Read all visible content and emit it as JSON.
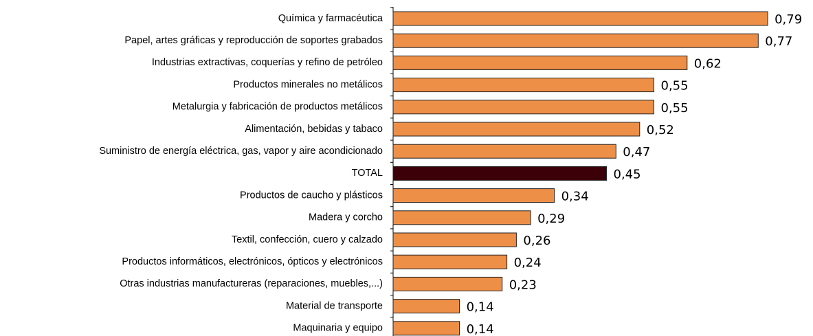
{
  "chart_data": {
    "type": "bar",
    "orientation": "horizontal",
    "categories": [
      "Química y farmacéutica",
      "Papel, artes gráficas y reproducción de soportes grabados",
      "Industrias extractivas, coquerías y refino de petróleo",
      "Productos minerales no metálicos",
      "Metalurgia y fabricación de productos metálicos",
      "Alimentación, bebidas y tabaco",
      "Suministro de energía eléctrica, gas, vapor y aire acondicionado",
      "TOTAL",
      "Productos de caucho y plásticos",
      "Madera y corcho",
      "Textil, confección, cuero y calzado",
      "Productos informáticos, electrónicos, ópticos y electrónicos",
      "Otras industrias manufactureras (reparaciones, muebles,...)",
      "Material de transporte",
      "Maquinaria y equipo"
    ],
    "values": [
      0.79,
      0.77,
      0.62,
      0.55,
      0.55,
      0.52,
      0.47,
      0.45,
      0.34,
      0.29,
      0.26,
      0.24,
      0.23,
      0.14,
      0.14
    ],
    "value_labels": [
      "0,79",
      "0,77",
      "0,62",
      "0,55",
      "0,55",
      "0,52",
      "0,47",
      "0,45",
      "0,34",
      "0,29",
      "0,26",
      "0,24",
      "0,23",
      "0,14",
      "0,14"
    ],
    "colors": [
      "#ee8f48",
      "#ee8f48",
      "#ee8f48",
      "#ee8f48",
      "#ee8f48",
      "#ee8f48",
      "#ee8f48",
      "#3b0008",
      "#ee8f48",
      "#ee8f48",
      "#ee8f48",
      "#ee8f48",
      "#ee8f48",
      "#ee8f48",
      "#ee8f48"
    ],
    "xlim": [
      0,
      0.8
    ]
  }
}
